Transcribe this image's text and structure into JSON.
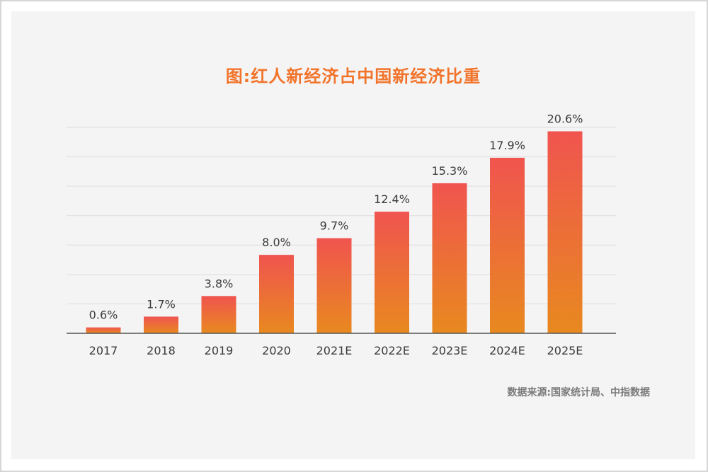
{
  "title": "图:红人新经济占中国新经济比重",
  "source": "数据来源:国家统计局、中指数据",
  "chart_data": {
    "type": "bar",
    "categories": [
      "2017",
      "2018",
      "2019",
      "2020",
      "2021E",
      "2022E",
      "2023E",
      "2024E",
      "2025E"
    ],
    "values": [
      0.6,
      1.7,
      3.8,
      8.0,
      9.7,
      12.4,
      15.3,
      17.9,
      20.6
    ],
    "value_labels": [
      "0.6%",
      "1.7%",
      "3.8%",
      "8.0%",
      "9.7%",
      "12.4%",
      "15.3%",
      "17.9%",
      "20.6%"
    ],
    "title": "图:红人新经济占中国新经济比重",
    "xlabel": "",
    "ylabel": "",
    "ylim": [
      0,
      21
    ],
    "grid": true,
    "colors": {
      "bar_top": "#f0544f",
      "bar_bottom": "#e8891f",
      "title": "#f2742b",
      "grid": "#dddddd",
      "axis": "#555555"
    }
  }
}
